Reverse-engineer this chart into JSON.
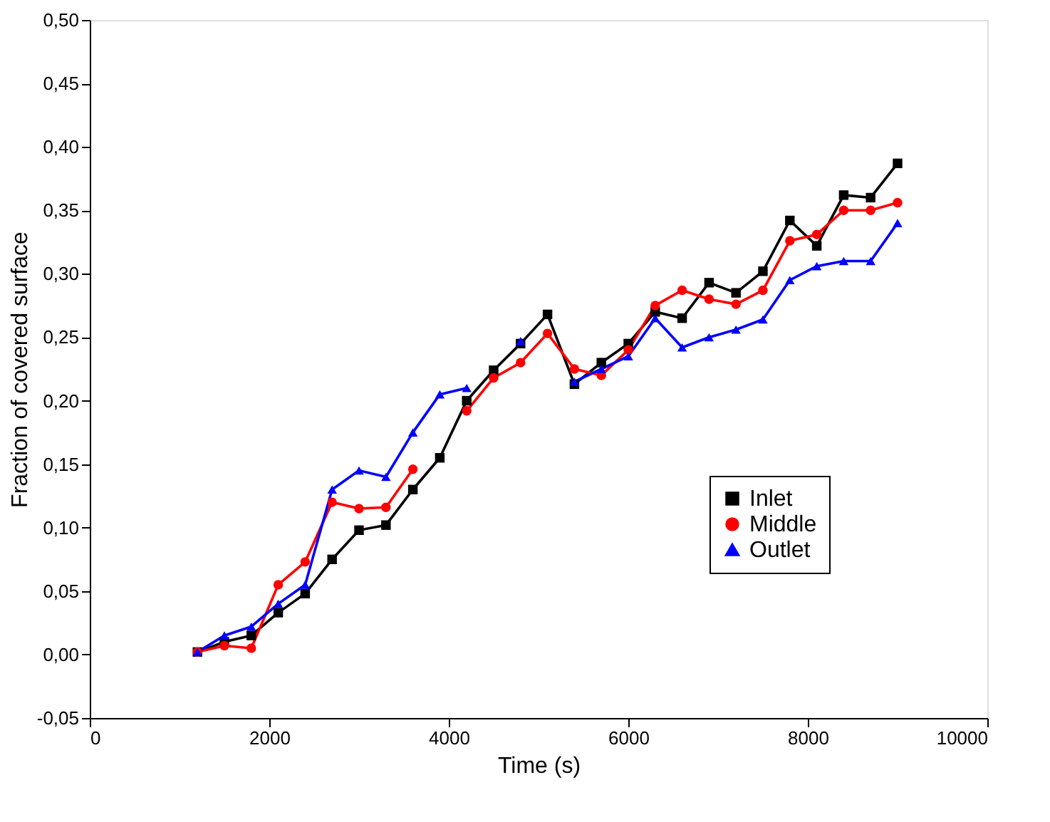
{
  "chart_data": {
    "type": "line",
    "xlabel": "Time (s)",
    "ylabel": "Fraction of covered surface",
    "x": [
      1200,
      1500,
      1800,
      2100,
      2400,
      2700,
      3000,
      3300,
      3600,
      3900,
      4200,
      4500,
      4800,
      5100,
      5400,
      5700,
      6000,
      6300,
      6600,
      6900,
      7200,
      7500,
      7800,
      8100,
      8400,
      8700,
      9000
    ],
    "series": [
      {
        "name": "Inlet",
        "color": "#000000",
        "marker": "square",
        "values": [
          0.002,
          0.01,
          0.015,
          0.033,
          0.048,
          0.075,
          0.098,
          0.102,
          0.13,
          0.155,
          0.2,
          0.224,
          0.245,
          0.268,
          0.213,
          0.23,
          0.245,
          0.27,
          0.265,
          0.293,
          0.285,
          0.302,
          0.342,
          0.322,
          0.362,
          0.36,
          0.387
        ]
      },
      {
        "name": "Middle",
        "color": "#ff0000",
        "marker": "circle",
        "values": [
          0.002,
          0.007,
          0.005,
          0.055,
          0.073,
          0.12,
          0.115,
          0.116,
          0.146,
          null,
          0.192,
          0.218,
          0.23,
          0.253,
          0.225,
          0.22,
          0.24,
          0.275,
          0.287,
          0.28,
          0.276,
          0.287,
          0.326,
          0.331,
          0.35,
          0.35,
          0.356
        ]
      },
      {
        "name": "Outlet",
        "color": "#0000ff",
        "marker": "triangle",
        "values": [
          0.002,
          0.015,
          0.022,
          0.04,
          0.055,
          0.13,
          0.145,
          0.14,
          0.175,
          0.205,
          0.21,
          null,
          0.247,
          null,
          0.215,
          0.225,
          0.235,
          0.265,
          0.242,
          0.25,
          0.256,
          0.264,
          0.295,
          0.306,
          0.31,
          0.31,
          0.34
        ]
      }
    ],
    "xlim": [
      0,
      10000
    ],
    "xticks": [
      0,
      2000,
      4000,
      6000,
      8000,
      10000
    ],
    "ylim": [
      -0.05,
      0.5
    ],
    "yticks": [
      {
        "value": -0.05,
        "label": "-0,05"
      },
      {
        "value": 0,
        "label": "0,00"
      },
      {
        "value": 0.05,
        "label": "0,05"
      },
      {
        "value": 0.1,
        "label": "0,10"
      },
      {
        "value": 0.15,
        "label": "0,15"
      },
      {
        "value": 0.2,
        "label": "0,20"
      },
      {
        "value": 0.25,
        "label": "0,25"
      },
      {
        "value": 0.3,
        "label": "0,30"
      },
      {
        "value": 0.35,
        "label": "0,35"
      },
      {
        "value": 0.4,
        "label": "0,40"
      },
      {
        "value": 0.45,
        "label": "0,45"
      },
      {
        "value": 0.5,
        "label": "0,50"
      }
    ],
    "grid": false,
    "legend": "right",
    "line_style": "solid"
  }
}
